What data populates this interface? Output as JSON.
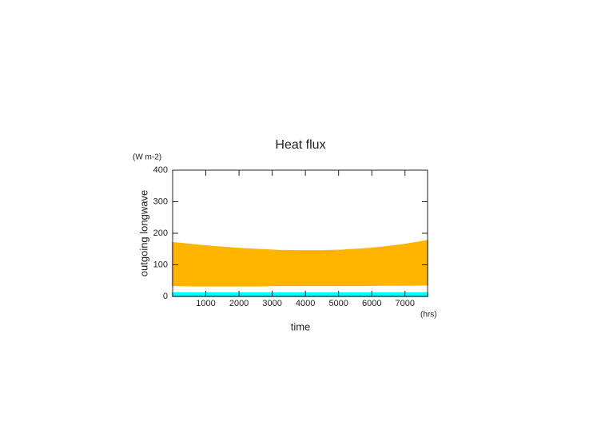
{
  "chart_data": {
    "type": "band",
    "title": "Heat flux",
    "y_unit": "(W m-2)",
    "y_label": "outgoing longwave",
    "x_label": "time",
    "x_unit": "(hrs)",
    "x": [
      0,
      640,
      1280,
      1920,
      2560,
      3200,
      3840,
      4480,
      5120,
      5760,
      6400,
      7040,
      7680
    ],
    "bands": [
      {
        "color": "#ffb400",
        "upper": [
          170,
          163,
          157,
          152,
          148,
          145,
          144,
          144,
          146,
          150,
          156,
          165,
          176
        ],
        "lower": [
          35,
          34,
          34,
          34,
          34,
          35,
          35,
          35,
          35,
          35,
          36,
          36,
          37
        ]
      },
      {
        "color": "#00ffff",
        "upper": [
          10,
          10,
          10,
          10,
          10,
          10,
          10,
          10,
          10,
          10,
          10,
          10,
          10
        ],
        "lower": [
          0,
          0,
          0,
          0,
          0,
          0,
          0,
          0,
          0,
          0,
          0,
          0,
          0
        ]
      }
    ],
    "xlim": [
      0,
      7680
    ],
    "xticks": [
      1000,
      2000,
      3000,
      4000,
      5000,
      6000,
      7000
    ],
    "ylim": [
      0,
      400
    ],
    "yticks": [
      0,
      100,
      200,
      300,
      400
    ]
  }
}
